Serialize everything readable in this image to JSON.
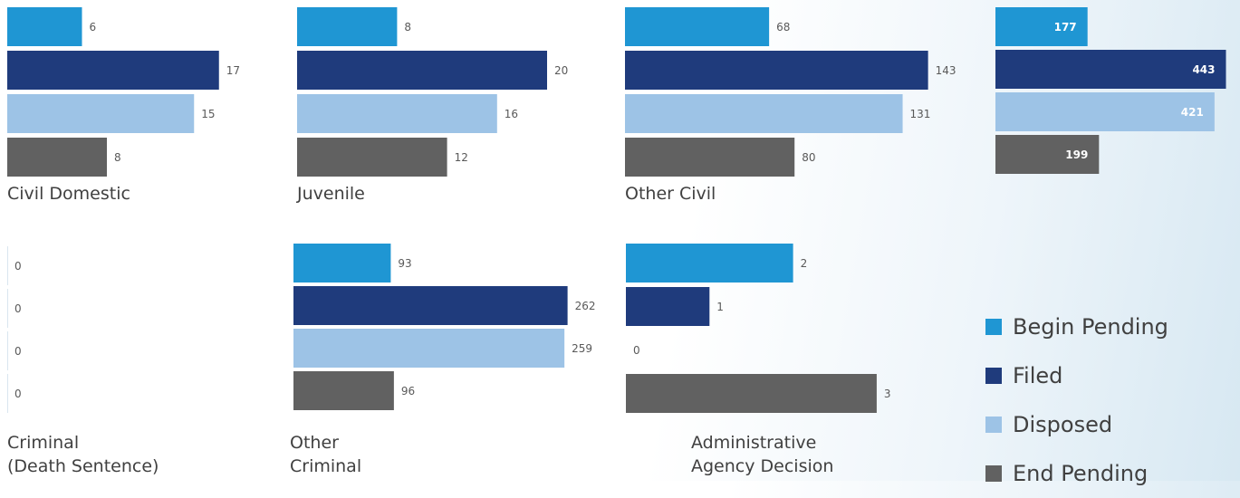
{
  "chart_data": {
    "type": "bar",
    "orientation": "horizontal",
    "series_names": [
      "Begin Pending",
      "Filed",
      "Disposed",
      "End Pending"
    ],
    "colors": {
      "Begin Pending": "#1f96d3",
      "Filed": "#1f3b7c",
      "Disposed": "#9dc3e6",
      "End Pending": "#616161"
    },
    "panels": [
      {
        "label_lines": [
          "Civil Domestic"
        ],
        "values": [
          6,
          17,
          15,
          8
        ]
      },
      {
        "label_lines": [
          "Juvenile"
        ],
        "values": [
          8,
          20,
          16,
          12
        ]
      },
      {
        "label_lines": [
          "Other Civil"
        ],
        "values": [
          68,
          143,
          131,
          80
        ]
      },
      {
        "label_lines": [],
        "values": [
          177,
          443,
          421,
          199
        ],
        "labels_inside": true
      },
      {
        "label_lines": [
          "Criminal",
          "(Death Sentence)"
        ],
        "values": [
          0,
          0,
          0,
          0
        ]
      },
      {
        "label_lines": [
          "Other",
          "Criminal"
        ],
        "values": [
          93,
          262,
          259,
          96
        ]
      },
      {
        "label_lines": [
          "Administrative",
          "Agency Decision"
        ],
        "values": [
          2,
          1,
          0,
          3
        ]
      }
    ]
  },
  "legend": [
    {
      "label": "Begin Pending",
      "color": "#1f96d3"
    },
    {
      "label": "Filed",
      "color": "#1f3b7c"
    },
    {
      "label": "Disposed",
      "color": "#9dc3e6"
    },
    {
      "label": "End Pending",
      "color": "#616161"
    }
  ]
}
